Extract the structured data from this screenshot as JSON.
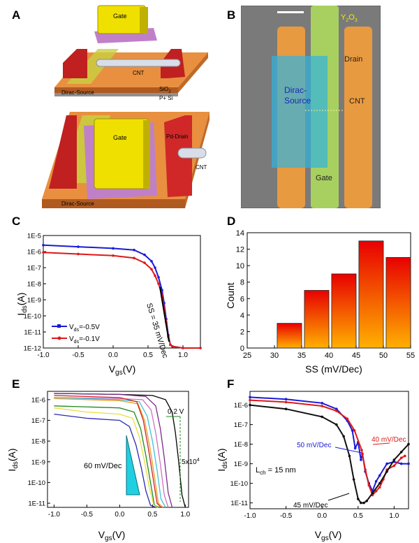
{
  "panel_labels": [
    "A",
    "B",
    "C",
    "D",
    "E",
    "F"
  ],
  "schematic_a": {
    "top": {
      "gate": "Gate",
      "cnt": "CNT",
      "source": "Dirac-Source",
      "oxide": "SiO",
      "oxide_sub": "2",
      "substrate": "P+ Si"
    },
    "bottom": {
      "gate": "Gate",
      "drain": "Pd-Drain",
      "cnt": "CNT",
      "source": "Dirac-Source"
    }
  },
  "micrograph_b": {
    "y2o3": "Y",
    "y2o3_sub1": "2",
    "y2o3_mid": "O",
    "y2o3_sub2": "3",
    "drain": "Drain",
    "source_1": "Dirac-",
    "source_2": "Source",
    "cnt": "CNT",
    "gate": "Gate"
  },
  "chart_data": [
    {
      "id": "C",
      "type": "line",
      "xlabel": "V",
      "xlabel_sub": "gs",
      "xlabel_unit": "(V)",
      "ylabel": "I",
      "ylabel_sub": "ds",
      "ylabel_unit": "(A)",
      "xlim": [
        -1.0,
        1.25
      ],
      "ylim_log10": [
        -12,
        -5
      ],
      "xticks": [
        "-1.0",
        "-0.5",
        "0.0",
        "0.5",
        "1.0"
      ],
      "yticks": [
        "1E-12",
        "1E-11",
        "1E-10",
        "1E-9",
        "1E-8",
        "1E-7",
        "1E-6",
        "1E-5"
      ],
      "annotation": "SS = 35 mV/Dec",
      "legend": [
        {
          "label": "V",
          "sub": "ds",
          "suffix": "=-0.5V",
          "color": "#1a1ad8"
        },
        {
          "label": "V",
          "sub": "ds",
          "suffix": "=-0.1V",
          "color": "#e01818"
        }
      ],
      "series": [
        {
          "name": "Vds=-0.5V",
          "color": "#1a1ad8",
          "x": [
            -1.0,
            -0.5,
            0.0,
            0.3,
            0.45,
            0.55,
            0.6,
            0.65,
            0.7,
            0.73,
            0.76,
            0.79,
            0.82,
            0.85,
            1.0,
            1.25
          ],
          "log10y": [
            -5.6,
            -5.7,
            -5.8,
            -5.9,
            -6.2,
            -6.6,
            -7.0,
            -7.6,
            -8.4,
            -9.2,
            -10.2,
            -11.2,
            -11.8,
            -11.9,
            -12.0,
            -12.0
          ]
        },
        {
          "name": "Vds=-0.1V",
          "color": "#e01818",
          "x": [
            -1.0,
            -0.5,
            0.0,
            0.3,
            0.45,
            0.55,
            0.6,
            0.65,
            0.7,
            0.73,
            0.76,
            0.79,
            0.82,
            0.85,
            1.0,
            1.25
          ],
          "log10y": [
            -6.05,
            -6.15,
            -6.25,
            -6.4,
            -6.7,
            -7.1,
            -7.5,
            -8.0,
            -8.7,
            -9.5,
            -10.4,
            -11.3,
            -11.8,
            -11.9,
            -12.0,
            -12.0
          ]
        }
      ]
    },
    {
      "id": "D",
      "type": "bar",
      "xlabel": "SS (mV/Dec)",
      "ylabel": "Count",
      "xlim": [
        25,
        55
      ],
      "ylim": [
        0,
        14
      ],
      "xticks": [
        "25",
        "30",
        "35",
        "40",
        "45",
        "50",
        "55"
      ],
      "yticks": [
        "0",
        "2",
        "4",
        "6",
        "8",
        "10",
        "12",
        "14"
      ],
      "bin_edges": [
        [
          30.5,
          35
        ],
        [
          35.5,
          40
        ],
        [
          40.5,
          45
        ],
        [
          45.5,
          50
        ],
        [
          50.5,
          55
        ]
      ],
      "values": [
        3,
        7,
        9,
        13,
        11
      ]
    },
    {
      "id": "E",
      "type": "line",
      "xlabel": "V",
      "xlabel_sub": "gs",
      "xlabel_unit": "(V)",
      "ylabel": "I",
      "ylabel_sub": "ds",
      "ylabel_unit": "(A)",
      "xlim": [
        -1.1,
        1.05
      ],
      "ylim_log10": [
        -11.2,
        -5.6
      ],
      "xticks": [
        "-1.0",
        "-0.5",
        "0.0",
        "0.5",
        "1.0"
      ],
      "yticks": [
        "1E-11",
        "1E-10",
        "1E-9",
        "1E-8",
        "1E-7",
        "1E-6"
      ],
      "annotations": {
        "vlabel": "0.2 V",
        "ratio": "5x10",
        "ratio_sup": "4",
        "slope": "60 mV/Dec"
      },
      "series": [
        {
          "name": "black",
          "color": "#000000",
          "x": [
            -1.0,
            0.0,
            0.5,
            0.7,
            0.8,
            0.85,
            0.9,
            0.95,
            1.0
          ],
          "log10y": [
            -5.7,
            -5.75,
            -5.8,
            -6.0,
            -6.6,
            -7.6,
            -9.0,
            -10.6,
            -11.2
          ]
        },
        {
          "name": "purple",
          "color": "#7a2a8a",
          "x": [
            -1.0,
            0.0,
            0.4,
            0.55,
            0.62,
            0.68,
            0.74,
            0.8
          ],
          "log10y": [
            -5.7,
            -5.75,
            -5.85,
            -6.3,
            -7.4,
            -8.8,
            -10.5,
            -11.2
          ]
        },
        {
          "name": "pink",
          "color": "#d070c0",
          "x": [
            -1.0,
            0.0,
            0.35,
            0.48,
            0.55,
            0.62,
            0.68,
            0.74
          ],
          "log10y": [
            -5.9,
            -5.95,
            -6.0,
            -6.5,
            -7.6,
            -9.1,
            -10.6,
            -11.2
          ]
        },
        {
          "name": "cyan",
          "color": "#40c0d8",
          "x": [
            -1.0,
            0.0,
            0.3,
            0.42,
            0.5,
            0.57,
            0.63,
            0.7
          ],
          "log10y": [
            -5.9,
            -6.0,
            -6.1,
            -6.8,
            -8.0,
            -9.4,
            -10.8,
            -11.2
          ]
        },
        {
          "name": "orange",
          "color": "#e8a020",
          "x": [
            -1.0,
            0.0,
            0.28,
            0.38,
            0.46,
            0.53,
            0.59,
            0.66
          ],
          "log10y": [
            -5.95,
            -6.05,
            -6.2,
            -7.0,
            -8.3,
            -9.7,
            -11.0,
            -11.2
          ]
        },
        {
          "name": "red",
          "color": "#d02020",
          "x": [
            -1.0,
            0.0,
            0.26,
            0.36,
            0.44,
            0.51,
            0.57,
            0.63
          ],
          "log10y": [
            -5.8,
            -5.9,
            -6.1,
            -7.0,
            -8.4,
            -9.8,
            -11.0,
            -11.2
          ]
        },
        {
          "name": "green",
          "color": "#208a20",
          "x": [
            -1.0,
            0.0,
            0.22,
            0.32,
            0.4,
            0.47,
            0.53,
            0.6
          ],
          "log10y": [
            -6.3,
            -6.4,
            -6.6,
            -7.4,
            -8.7,
            -10.0,
            -11.1,
            -11.2
          ]
        },
        {
          "name": "yellow",
          "color": "#e6e040",
          "x": [
            -1.0,
            -0.5,
            0.0,
            0.2,
            0.3,
            0.38,
            0.45,
            0.52,
            0.58
          ],
          "log10y": [
            -6.4,
            -6.6,
            -6.7,
            -6.9,
            -7.8,
            -9.0,
            -10.2,
            -11.1,
            -11.2
          ]
        },
        {
          "name": "blue",
          "color": "#2a2ab0",
          "x": [
            -1.0,
            -0.5,
            0.0,
            0.15,
            0.25,
            0.33,
            0.4,
            0.47,
            0.55
          ],
          "log10y": [
            -6.7,
            -6.9,
            -7.0,
            -7.3,
            -8.2,
            -9.3,
            -10.4,
            -11.1,
            -11.2
          ]
        }
      ]
    },
    {
      "id": "F",
      "type": "line",
      "xlabel": "V",
      "xlabel_sub": "gs",
      "xlabel_unit": "(V)",
      "ylabel": "I",
      "ylabel_sub": "ds",
      "ylabel_unit": "(A)",
      "xlim": [
        -1.0,
        1.2
      ],
      "ylim_log10": [
        -11.3,
        -5.3
      ],
      "xticks": [
        "-1.0",
        "-0.5",
        "0.0",
        "0.5",
        "1.0"
      ],
      "yticks": [
        "1E-11",
        "1E-10",
        "1E-9",
        "1E-8",
        "1E-7",
        "1E-6"
      ],
      "annotations": {
        "lch": "L",
        "lch_sub": "ch",
        "lch_val": " = 15 nm",
        "blue": "50 mV/Dec",
        "red": "40 mV/Dec",
        "black": "45 mV/Dec"
      },
      "series": [
        {
          "name": "blue",
          "color": "#1a1ad8",
          "x": [
            -1.0,
            -0.5,
            0.0,
            0.2,
            0.35,
            0.42,
            0.46,
            0.5,
            0.54,
            0.56,
            0.6,
            0.65,
            0.7,
            0.75,
            0.8,
            0.9,
            1.0,
            1.1,
            1.2
          ],
          "log10y": [
            -5.6,
            -5.7,
            -5.9,
            -6.2,
            -6.8,
            -7.3,
            -8.2,
            -7.9,
            -8.8,
            -8.5,
            -9.4,
            -10.0,
            -10.4,
            -9.9,
            -9.6,
            -9.0,
            -8.9,
            -9.0,
            -9.0
          ]
        },
        {
          "name": "red",
          "color": "#e01818",
          "x": [
            -1.0,
            -0.5,
            0.0,
            0.2,
            0.35,
            0.45,
            0.55,
            0.6,
            0.65,
            0.7,
            0.75,
            0.8,
            0.85,
            0.9,
            1.0,
            1.1,
            1.15
          ],
          "log10y": [
            -5.75,
            -5.85,
            -6.05,
            -6.3,
            -6.7,
            -7.3,
            -8.3,
            -9.3,
            -10.1,
            -10.6,
            -10.4,
            -10.2,
            -9.8,
            -9.3,
            -9.1,
            -8.7,
            -8.6
          ]
        },
        {
          "name": "black",
          "color": "#101010",
          "x": [
            -1.0,
            -0.5,
            0.0,
            0.2,
            0.3,
            0.38,
            0.44,
            0.5,
            0.54,
            0.58,
            0.62,
            0.7,
            0.8,
            0.9,
            1.0,
            1.1,
            1.2
          ],
          "log10y": [
            -6.0,
            -6.2,
            -6.6,
            -7.0,
            -7.6,
            -8.6,
            -9.8,
            -10.8,
            -11.0,
            -11.0,
            -10.9,
            -10.5,
            -10.0,
            -9.4,
            -8.8,
            -8.4,
            -8.0
          ]
        }
      ]
    }
  ]
}
